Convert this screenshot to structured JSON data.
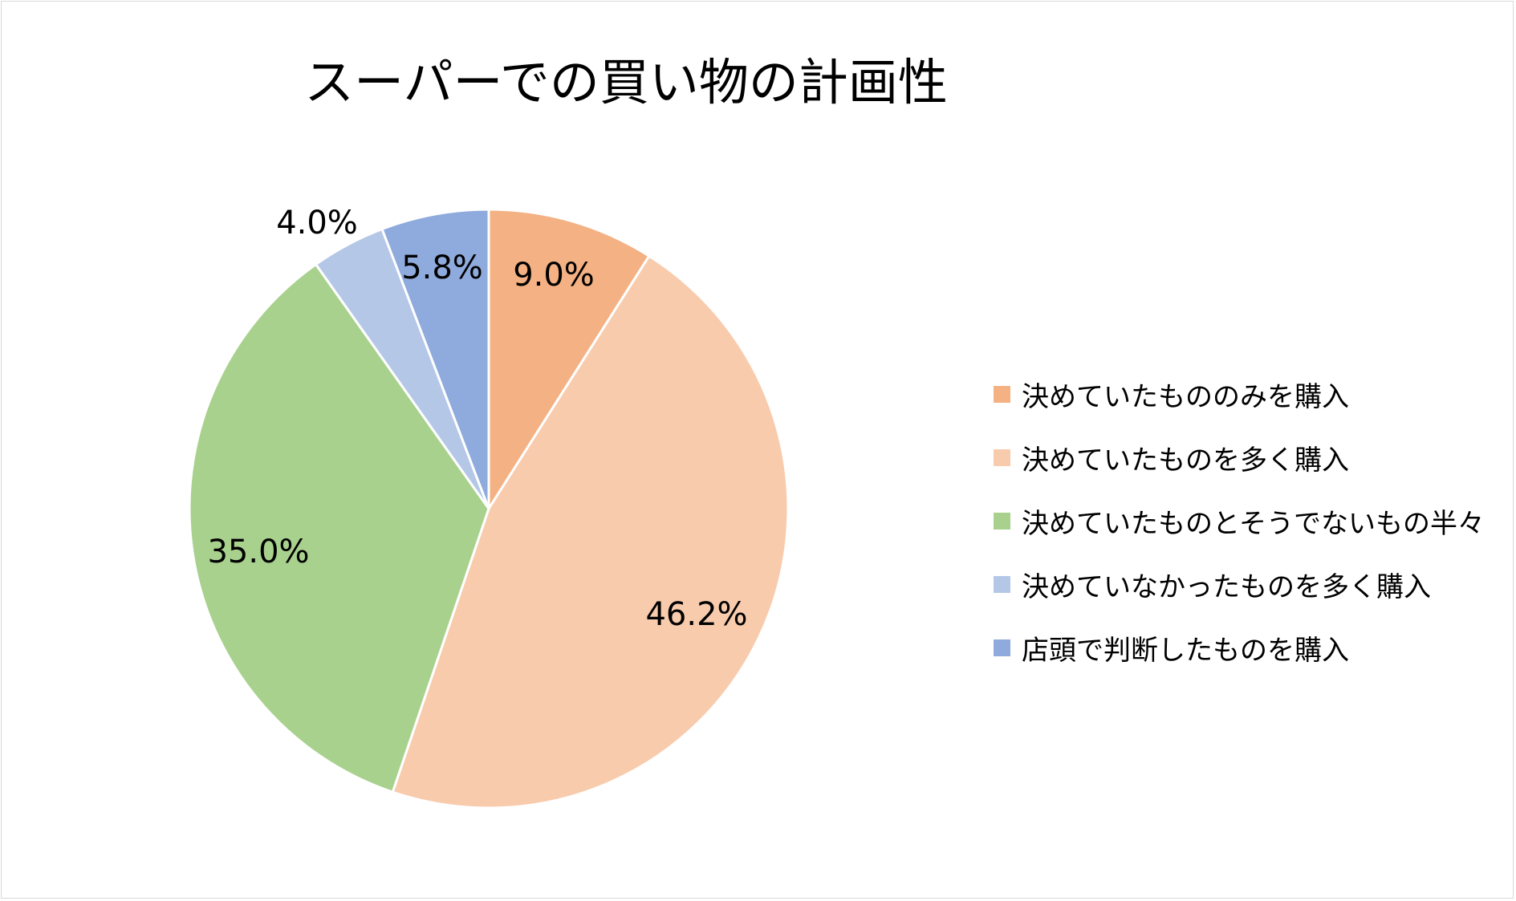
{
  "chart_data": {
    "type": "pie",
    "title": "スーパーでの買い物の計画性",
    "legend_position": "right",
    "unit": "%",
    "slices": [
      {
        "label": "決めていたもののみを購入",
        "value": 9.0,
        "display": "9.0%",
        "color": "#F4B183"
      },
      {
        "label": "決めていたものを多く購入",
        "value": 46.2,
        "display": "46.2%",
        "color": "#F8CBAD"
      },
      {
        "label": "決めていたものとそうでないもの半々",
        "value": 35.0,
        "display": "35.0%",
        "color": "#A9D18E"
      },
      {
        "label": "決めていなかったものを多く購入",
        "value": 4.0,
        "display": "4.0%",
        "color": "#B4C7E7"
      },
      {
        "label": "店頭で判断したものを購入",
        "value": 5.8,
        "display": "5.8%",
        "color": "#8FAADC"
      }
    ]
  }
}
